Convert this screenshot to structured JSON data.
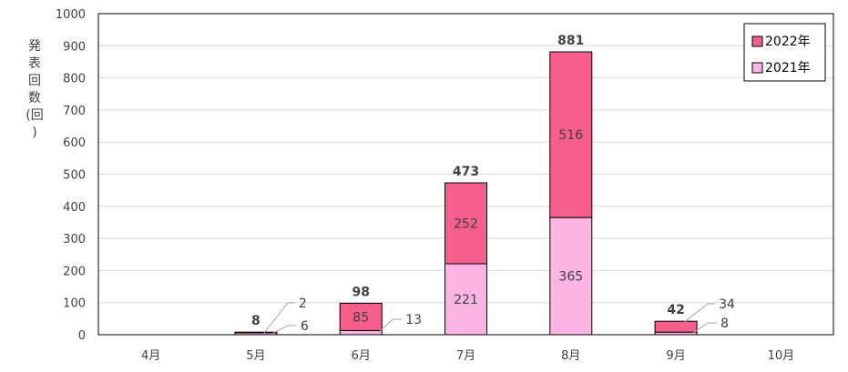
{
  "chart_data": {
    "type": "bar",
    "stacked": true,
    "categories": [
      "4月",
      "5月",
      "6月",
      "7月",
      "8月",
      "9月",
      "10月"
    ],
    "series": [
      {
        "name": "2021年",
        "values": [
          0,
          6,
          13,
          221,
          365,
          8,
          0
        ],
        "color": "#FBB4E3"
      },
      {
        "name": "2022年",
        "values": [
          0,
          2,
          85,
          252,
          516,
          34,
          0
        ],
        "color": "#F65E8B"
      }
    ],
    "totals": [
      null,
      8,
      98,
      473,
      881,
      42,
      null
    ],
    "ylabel": "発表回数(回)",
    "ylabel_chars": [
      "発",
      "表",
      "回",
      "数",
      "(回",
      ")"
    ],
    "ylim": [
      0,
      1000
    ],
    "yticks": [
      0,
      100,
      200,
      300,
      400,
      500,
      600,
      700,
      800,
      900,
      1000
    ],
    "grid": true,
    "legend_position": "top-right",
    "legend_order": [
      "2022年",
      "2021年"
    ]
  }
}
